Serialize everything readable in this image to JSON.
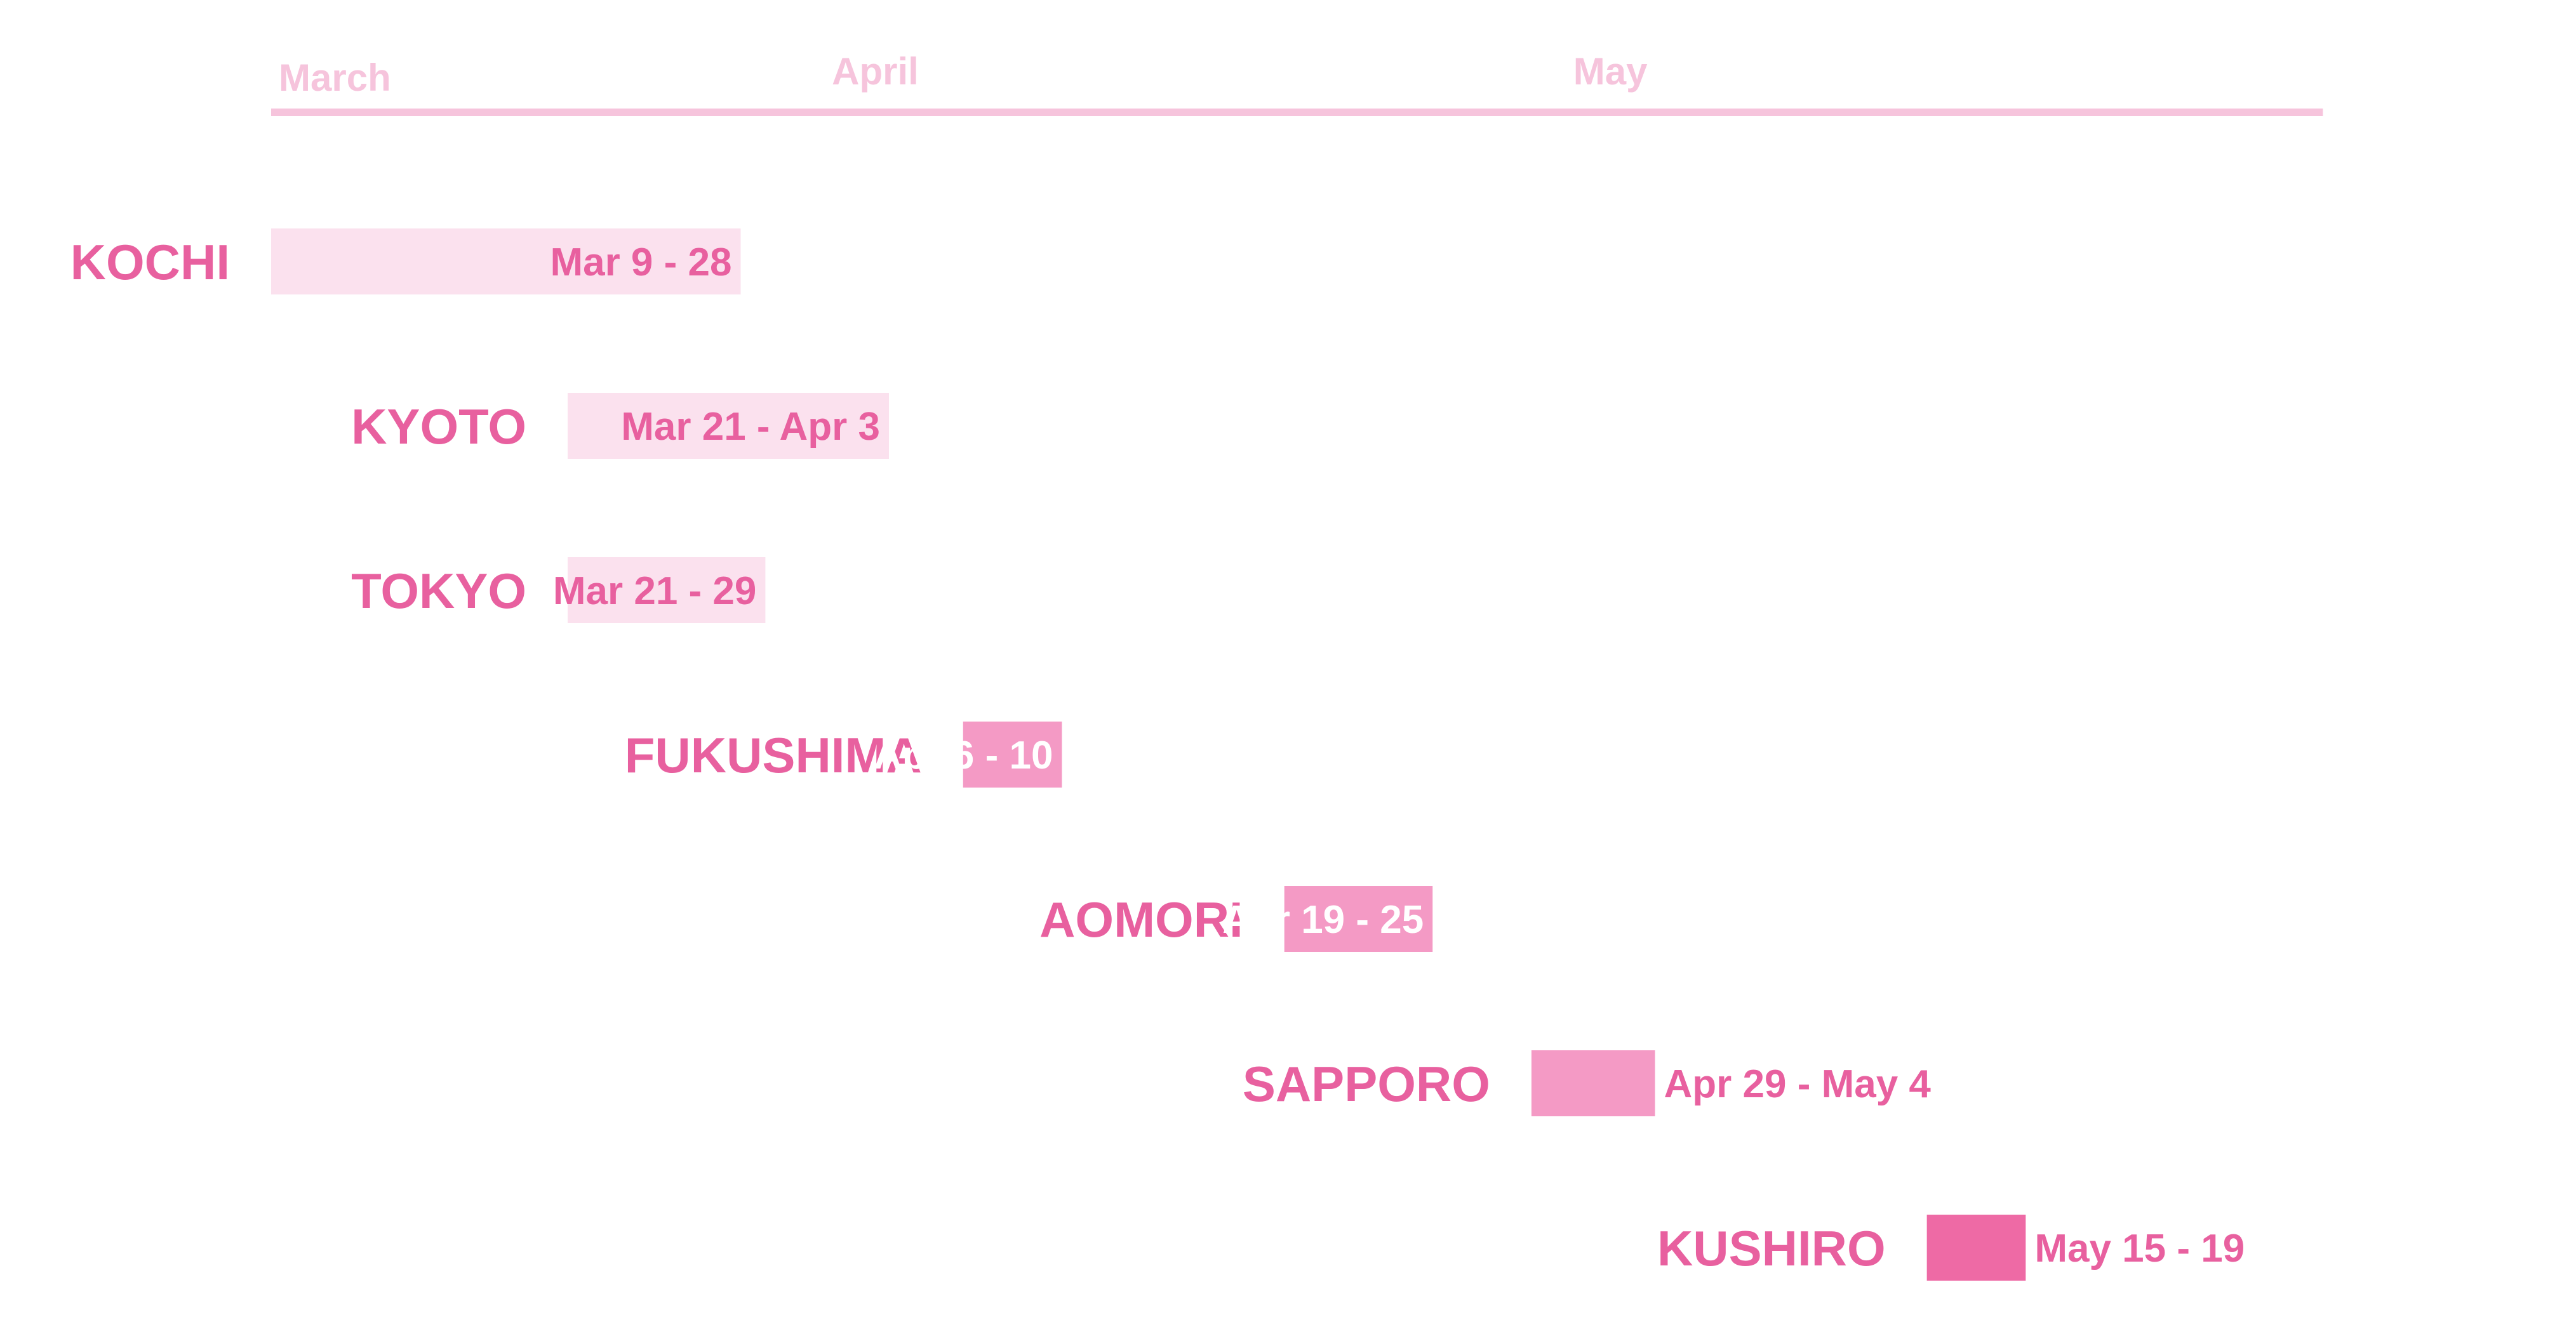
{
  "chart_data": {
    "type": "bar",
    "orientation": "horizontal",
    "subtype": "timeline",
    "months": [
      {
        "label": "March",
        "date": "03-01"
      },
      {
        "label": "April",
        "date": "04-01"
      },
      {
        "label": "May",
        "date": "05-01"
      }
    ],
    "xlim": [
      "03-09",
      "05-31"
    ],
    "grid": false,
    "legend": "none",
    "colors": {
      "axis": "#f6c4dc",
      "month_label": "#f6c4dc",
      "city_label": "#e8609f",
      "light_bar": "#fbe1ee",
      "mid_bar": "#f49ac5",
      "dark_bar": "#ee6aa5",
      "dark_text": "#e8609f",
      "light_text": "#ffffff"
    },
    "categories": [
      "KOCHI",
      "KYOTO",
      "TOKYO",
      "FUKUSHIMA",
      "AOMORI",
      "SAPPORO",
      "KUSHIRO"
    ],
    "series": [
      {
        "city": "KOCHI",
        "start": "03-09",
        "end": "03-28",
        "label": "Mar 9 - 28",
        "shade": "light",
        "label_pos": "inside"
      },
      {
        "city": "KYOTO",
        "start": "03-21",
        "end": "04-03",
        "label": "Mar 21 - Apr 3",
        "shade": "light",
        "label_pos": "inside"
      },
      {
        "city": "TOKYO",
        "start": "03-21",
        "end": "03-29",
        "label": "Mar 21 - 29",
        "shade": "light",
        "label_pos": "inside"
      },
      {
        "city": "FUKUSHIMA",
        "start": "04-06",
        "end": "04-10",
        "label": "Apr 6 - 10",
        "shade": "mid",
        "label_pos": "inside"
      },
      {
        "city": "AOMORI",
        "start": "04-19",
        "end": "04-25",
        "label": "Apr 19 - 25",
        "shade": "mid",
        "label_pos": "inside"
      },
      {
        "city": "SAPPORO",
        "start": "04-29",
        "end": "05-04",
        "label": "Apr 29 - May 4",
        "shade": "mid",
        "label_pos": "outside"
      },
      {
        "city": "KUSHIRO",
        "start": "05-15",
        "end": "05-19",
        "label": "May 15 - 19",
        "shade": "dark",
        "label_pos": "outside"
      }
    ]
  }
}
